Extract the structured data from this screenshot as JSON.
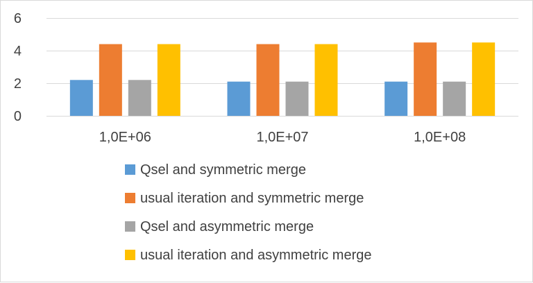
{
  "chart_data": {
    "type": "bar",
    "title": "",
    "xlabel": "",
    "ylabel": "",
    "categories": [
      "1,0E+06",
      "1,0E+07",
      "1,0E+08"
    ],
    "ylim": [
      0,
      6
    ],
    "yticks": [
      0,
      2,
      4,
      6
    ],
    "ytick_labels": [
      "0",
      "2",
      "4",
      "6"
    ],
    "grid": "horizontal",
    "legend_position": "bottom",
    "series": [
      {
        "name": "Qsel and symmetric merge",
        "color": "#5b9bd5",
        "values": [
          2.2,
          2.1,
          2.1
        ]
      },
      {
        "name": "usual iteration and symmetric merge",
        "color": "#ed7d31",
        "values": [
          4.4,
          4.4,
          4.5
        ]
      },
      {
        "name": "Qsel and asymmetric merge",
        "color": "#a5a5a5",
        "values": [
          2.2,
          2.1,
          2.1
        ]
      },
      {
        "name": "usual iteration and asymmetric merge",
        "color": "#ffc000",
        "values": [
          4.4,
          4.4,
          4.5
        ]
      }
    ]
  }
}
